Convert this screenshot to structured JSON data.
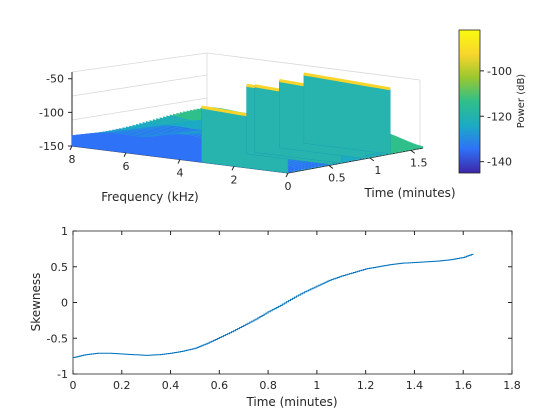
{
  "chart_data": [
    {
      "id": "spectrogram",
      "type": "surface",
      "title": "",
      "xlabel": "Frequency (kHz)",
      "ylabel": "Time (minutes)",
      "zlabel": "",
      "xlim": [
        0,
        8
      ],
      "ylim": [
        0,
        1.65
      ],
      "zlim": [
        -150,
        -40
      ],
      "x_ticks": [
        8,
        6,
        4,
        2,
        0
      ],
      "y_ticks": [
        0.5,
        1,
        1.5
      ],
      "z_ticks": [
        -50,
        -100,
        -150
      ],
      "colorbar": {
        "label": "Power (dB)",
        "ticks": [
          -100,
          -120,
          -140
        ],
        "range": [
          -145,
          -82
        ],
        "colormap": [
          "#3e26a8",
          "#2e72f8",
          "#1caac5",
          "#2fbf8a",
          "#9bc82f",
          "#f9d52c",
          "#f9fb0e"
        ]
      },
      "ridges": [
        {
          "time": 0.0,
          "peak_db": -68
        },
        {
          "time": 0.55,
          "peak_db": -48
        },
        {
          "time": 0.65,
          "peak_db": -51
        },
        {
          "time": 0.95,
          "peak_db": -50
        },
        {
          "time": 1.25,
          "peak_db": -47
        }
      ]
    },
    {
      "id": "skewness",
      "type": "line",
      "title": "",
      "xlabel": "Time (minutes)",
      "ylabel": "Skewness",
      "xlim": [
        0,
        1.8
      ],
      "ylim": [
        -1,
        1
      ],
      "x_ticks": [
        0,
        0.2,
        0.4,
        0.6,
        0.8,
        1,
        1.2,
        1.4,
        1.6,
        1.8
      ],
      "y_ticks": [
        -1,
        -0.5,
        0,
        0.5,
        1
      ],
      "color": "#0072bd",
      "series": [
        {
          "x": [
            0.0,
            0.05,
            0.1,
            0.15,
            0.2,
            0.25,
            0.3,
            0.35,
            0.4,
            0.45,
            0.5,
            0.55,
            0.6,
            0.65,
            0.7,
            0.75,
            0.8,
            0.85,
            0.9,
            0.95,
            1.0,
            1.05,
            1.1,
            1.15,
            1.2,
            1.25,
            1.3,
            1.35,
            1.4,
            1.45,
            1.5,
            1.55,
            1.6,
            1.64
          ],
          "y": [
            -0.77,
            -0.73,
            -0.71,
            -0.71,
            -0.72,
            -0.73,
            -0.74,
            -0.73,
            -0.71,
            -0.68,
            -0.64,
            -0.57,
            -0.49,
            -0.41,
            -0.32,
            -0.23,
            -0.13,
            -0.04,
            0.06,
            0.15,
            0.23,
            0.31,
            0.37,
            0.42,
            0.47,
            0.5,
            0.53,
            0.55,
            0.56,
            0.57,
            0.58,
            0.6,
            0.63,
            0.68
          ]
        }
      ]
    }
  ]
}
